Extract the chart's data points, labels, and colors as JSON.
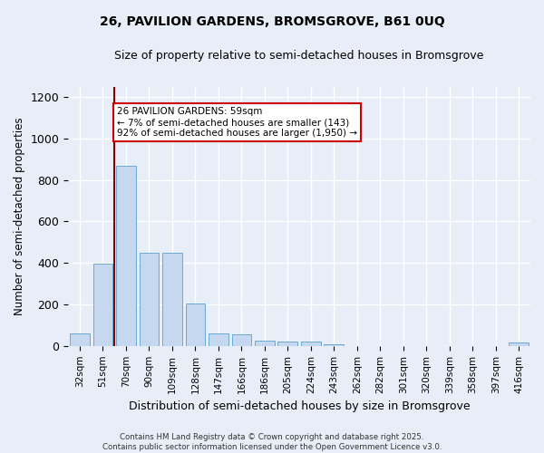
{
  "title_line1": "26, PAVILION GARDENS, BROMSGROVE, B61 0UQ",
  "title_line2": "Size of property relative to semi-detached houses in Bromsgrove",
  "xlabel": "Distribution of semi-detached houses by size in Bromsgrove",
  "ylabel": "Number of semi-detached properties",
  "categories": [
    "32sqm",
    "51sqm",
    "70sqm",
    "90sqm",
    "109sqm",
    "128sqm",
    "147sqm",
    "166sqm",
    "186sqm",
    "205sqm",
    "224sqm",
    "243sqm",
    "262sqm",
    "282sqm",
    "301sqm",
    "320sqm",
    "339sqm",
    "358sqm",
    "397sqm",
    "416sqm"
  ],
  "values": [
    60,
    395,
    870,
    450,
    450,
    205,
    60,
    55,
    25,
    20,
    20,
    10,
    0,
    0,
    0,
    0,
    0,
    0,
    0,
    15
  ],
  "bar_color": "#c5d8f0",
  "bar_edge_color": "#6aaad4",
  "background_color": "#e8eef8",
  "grid_color": "#d0d8e8",
  "vline_x": 1.5,
  "vline_color": "#8b0000",
  "annotation_text": "26 PAVILION GARDENS: 59sqm\n← 7% of semi-detached houses are smaller (143)\n92% of semi-detached houses are larger (1,950) →",
  "annotation_box_color": "white",
  "annotation_box_edge": "#cc0000",
  "ylim": [
    0,
    1250
  ],
  "yticks": [
    0,
    200,
    400,
    600,
    800,
    1000,
    1200
  ],
  "footnote": "Contains HM Land Registry data © Crown copyright and database right 2025.\nContains public sector information licensed under the Open Government Licence v3.0."
}
